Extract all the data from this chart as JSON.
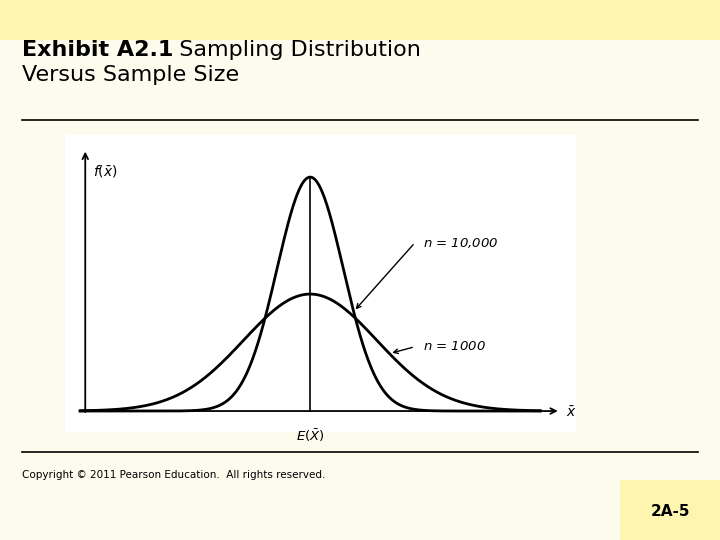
{
  "background_color": "#fdfbee",
  "plot_bg_color": "#ffffff",
  "title_bold": "Exhibit A2.1",
  "title_normal": "  Sampling Distribution",
  "title_line2": "Versus Sample Size",
  "title_fontsize": 16,
  "copyright_text": "Copyright © 2011 Pearson Education.  All rights reserved.",
  "copyright_fontsize": 7.5,
  "page_label": "2A-5",
  "page_bg": "#fdf5b0",
  "curve1_std": 0.65,
  "curve2_std": 1.3,
  "mean": 0.0,
  "label_n10000": "n = 10,000",
  "label_n1000": "n = 1000",
  "line_color": "#000000",
  "separator_color": "#000000",
  "header_bg": "#fdf5b0"
}
